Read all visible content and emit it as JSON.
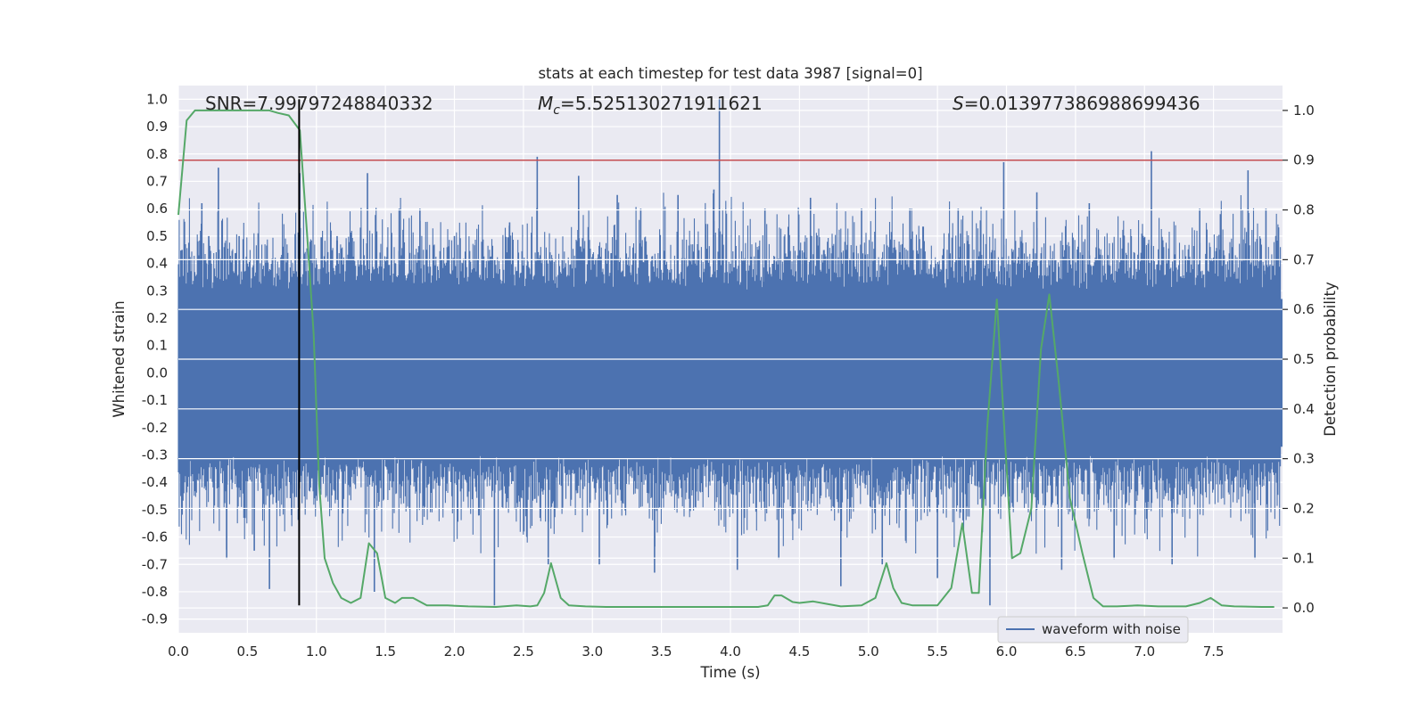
{
  "chart_data": {
    "type": "line",
    "title": "stats at each timestep for test data 3987 [signal=0]",
    "xlabel": "Time (s)",
    "ylabel_left": "Whitened strain",
    "ylabel_right": "Detection probability",
    "xlim": [
      0.0,
      8.0
    ],
    "ylim_left": [
      -0.95,
      1.05
    ],
    "ylim_right": [
      -0.05,
      1.05
    ],
    "xticks": [
      "0.0",
      "0.5",
      "1.0",
      "1.5",
      "2.0",
      "2.5",
      "3.0",
      "3.5",
      "4.0",
      "4.5",
      "5.0",
      "5.5",
      "6.0",
      "6.5",
      "7.0",
      "7.5"
    ],
    "xtick_values": [
      0.0,
      0.5,
      1.0,
      1.5,
      2.0,
      2.5,
      3.0,
      3.5,
      4.0,
      4.5,
      5.0,
      5.5,
      6.0,
      6.5,
      7.0,
      7.5
    ],
    "yticks_left": [
      "1.0",
      "0.9",
      "0.8",
      "0.7",
      "0.6",
      "0.5",
      "0.4",
      "0.3",
      "0.2",
      "0.1",
      "0.0",
      "-0.1",
      "-0.2",
      "-0.3",
      "-0.4",
      "-0.5",
      "-0.6",
      "-0.7",
      "-0.8",
      "-0.9"
    ],
    "ytick_left_values": [
      1.0,
      0.9,
      0.8,
      0.7,
      0.6,
      0.5,
      0.4,
      0.3,
      0.2,
      0.1,
      0.0,
      -0.1,
      -0.2,
      -0.3,
      -0.4,
      -0.5,
      -0.6,
      -0.7,
      -0.8,
      -0.9
    ],
    "yticks_right": [
      "1.0",
      "0.9",
      "0.8",
      "0.7",
      "0.6",
      "0.5",
      "0.4",
      "0.3",
      "0.2",
      "0.1",
      "0.0"
    ],
    "ytick_right_values": [
      1.0,
      0.9,
      0.8,
      0.7,
      0.6,
      0.5,
      0.4,
      0.3,
      0.2,
      0.1,
      0.0
    ],
    "annotations": {
      "snr": "SNR=7.99797248840332",
      "mc_symbol": "M",
      "mc_subscript": "c",
      "mc_value": "=5.525130271911621",
      "s_symbol": "S",
      "s_value": "=0.013977386988699436"
    },
    "threshold_line": {
      "axis": "right",
      "value": 0.9,
      "color": "#c44e52"
    },
    "event_marker": {
      "x": 0.875,
      "y_range": [
        -0.85,
        1.0
      ],
      "color": "#000000"
    },
    "waveform": {
      "name": "waveform with noise",
      "color": "#4c72b0",
      "description_amplitude_core": 0.3,
      "spikes": [
        {
          "t": 0.05,
          "v": 0.47
        },
        {
          "t": 0.17,
          "v": 0.62
        },
        {
          "t": 0.22,
          "v": 0.5
        },
        {
          "t": 0.29,
          "v": 0.75
        },
        {
          "t": 0.35,
          "v": -0.68
        },
        {
          "t": 0.44,
          "v": 0.5
        },
        {
          "t": 0.55,
          "v": -0.65
        },
        {
          "t": 0.66,
          "v": -0.79
        },
        {
          "t": 0.82,
          "v": -0.52
        },
        {
          "t": 0.88,
          "v": 0.73
        },
        {
          "t": 1.15,
          "v": 0.5
        },
        {
          "t": 1.37,
          "v": 0.73
        },
        {
          "t": 1.42,
          "v": -0.8
        },
        {
          "t": 1.6,
          "v": 0.6
        },
        {
          "t": 1.75,
          "v": 0.6
        },
        {
          "t": 2.0,
          "v": 0.5
        },
        {
          "t": 2.29,
          "v": -0.85
        },
        {
          "t": 2.4,
          "v": 0.55
        },
        {
          "t": 2.6,
          "v": 0.79
        },
        {
          "t": 2.68,
          "v": -0.7
        },
        {
          "t": 2.9,
          "v": 0.72
        },
        {
          "t": 3.05,
          "v": -0.7
        },
        {
          "t": 3.18,
          "v": 0.65
        },
        {
          "t": 3.35,
          "v": 0.6
        },
        {
          "t": 3.45,
          "v": -0.73
        },
        {
          "t": 3.62,
          "v": 0.65
        },
        {
          "t": 3.92,
          "v": 1.0
        },
        {
          "t": 3.88,
          "v": 0.67
        },
        {
          "t": 4.05,
          "v": -0.72
        },
        {
          "t": 4.25,
          "v": 0.6
        },
        {
          "t": 4.35,
          "v": -0.68
        },
        {
          "t": 4.58,
          "v": 0.64
        },
        {
          "t": 4.8,
          "v": -0.78
        },
        {
          "t": 4.95,
          "v": 0.6
        },
        {
          "t": 5.1,
          "v": -0.7
        },
        {
          "t": 5.3,
          "v": 0.6
        },
        {
          "t": 5.5,
          "v": -0.75
        },
        {
          "t": 5.65,
          "v": 0.6
        },
        {
          "t": 5.88,
          "v": -0.85
        },
        {
          "t": 5.98,
          "v": 0.77
        },
        {
          "t": 6.22,
          "v": 0.66
        },
        {
          "t": 6.4,
          "v": -0.72
        },
        {
          "t": 6.6,
          "v": 0.62
        },
        {
          "t": 6.78,
          "v": -0.68
        },
        {
          "t": 7.05,
          "v": 0.81
        },
        {
          "t": 7.2,
          "v": -0.7
        },
        {
          "t": 7.4,
          "v": 0.6
        },
        {
          "t": 7.55,
          "v": 0.58
        },
        {
          "t": 7.75,
          "v": 0.74
        },
        {
          "t": 7.8,
          "v": -0.68
        },
        {
          "t": 7.88,
          "v": 0.6
        }
      ]
    },
    "detection_probability": {
      "color": "#55a868",
      "x": [
        0.0,
        0.06,
        0.12,
        0.2,
        0.3,
        0.4,
        0.5,
        0.6,
        0.66,
        0.72,
        0.8,
        0.88,
        0.94,
        0.98,
        1.02,
        1.06,
        1.12,
        1.18,
        1.25,
        1.32,
        1.38,
        1.44,
        1.5,
        1.57,
        1.62,
        1.7,
        1.8,
        1.95,
        2.1,
        2.3,
        2.45,
        2.55,
        2.6,
        2.65,
        2.7,
        2.77,
        2.83,
        2.95,
        3.1,
        3.3,
        3.6,
        3.9,
        4.2,
        4.27,
        4.32,
        4.37,
        4.45,
        4.5,
        4.6,
        4.7,
        4.8,
        4.95,
        5.05,
        5.13,
        5.18,
        5.24,
        5.32,
        5.5,
        5.6,
        5.68,
        5.75,
        5.8,
        5.86,
        5.93,
        5.98,
        6.04,
        6.1,
        6.18,
        6.25,
        6.31,
        6.38,
        6.46,
        6.55,
        6.63,
        6.7,
        6.8,
        6.95,
        7.1,
        7.3,
        7.4,
        7.48,
        7.56,
        7.65,
        7.85,
        7.94
      ],
      "y": [
        0.79,
        0.98,
        1.0,
        1.0,
        1.0,
        1.0,
        1.0,
        1.0,
        1.0,
        0.995,
        0.99,
        0.96,
        0.72,
        0.55,
        0.25,
        0.1,
        0.05,
        0.02,
        0.01,
        0.02,
        0.13,
        0.11,
        0.02,
        0.01,
        0.02,
        0.02,
        0.005,
        0.005,
        0.003,
        0.002,
        0.005,
        0.003,
        0.005,
        0.03,
        0.09,
        0.02,
        0.005,
        0.003,
        0.002,
        0.002,
        0.002,
        0.002,
        0.002,
        0.005,
        0.025,
        0.025,
        0.012,
        0.01,
        0.013,
        0.008,
        0.003,
        0.005,
        0.02,
        0.09,
        0.04,
        0.01,
        0.005,
        0.005,
        0.04,
        0.17,
        0.03,
        0.03,
        0.36,
        0.62,
        0.38,
        0.1,
        0.11,
        0.2,
        0.52,
        0.63,
        0.45,
        0.22,
        0.11,
        0.02,
        0.003,
        0.003,
        0.005,
        0.003,
        0.003,
        0.01,
        0.02,
        0.005,
        0.003,
        0.002,
        0.002
      ]
    },
    "legend": {
      "position": "lower-right",
      "entries": [
        "waveform with noise"
      ]
    }
  }
}
